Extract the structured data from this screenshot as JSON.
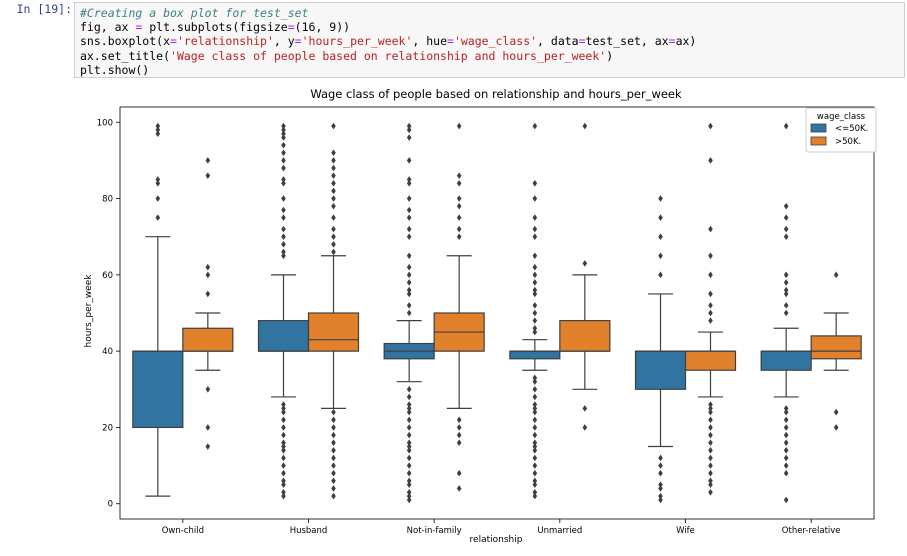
{
  "cell": {
    "prompt": "In [19]:",
    "code_lines": [
      [
        {
          "t": "#Creating a box plot for test_set",
          "c": "cm"
        }
      ],
      [
        {
          "t": "fig, ax "
        },
        {
          "t": "=",
          "c": "eq"
        },
        {
          "t": " plt.subplots(figsize"
        },
        {
          "t": "=",
          "c": "eq"
        },
        {
          "t": "(16, 9))"
        }
      ],
      [
        {
          "t": "sns.boxplot(x"
        },
        {
          "t": "=",
          "c": "eq"
        },
        {
          "t": "'relationship'",
          "c": "st"
        },
        {
          "t": ", y"
        },
        {
          "t": "=",
          "c": "eq"
        },
        {
          "t": "'hours_per_week'",
          "c": "st"
        },
        {
          "t": ", hue"
        },
        {
          "t": "=",
          "c": "eq"
        },
        {
          "t": "'wage_class'",
          "c": "st"
        },
        {
          "t": ", data"
        },
        {
          "t": "=",
          "c": "eq"
        },
        {
          "t": "test_set, ax"
        },
        {
          "t": "=",
          "c": "eq"
        },
        {
          "t": "ax)"
        }
      ],
      [
        {
          "t": "ax.set_title("
        },
        {
          "t": "'Wage class of people based on relationship and hours_per_week'",
          "c": "st"
        },
        {
          "t": ")"
        }
      ],
      [
        {
          "t": "plt.show()"
        }
      ]
    ]
  },
  "chart_data": {
    "type": "box",
    "title": "Wage class of people based on relationship and hours_per_week",
    "xlabel": "relationship",
    "ylabel": "hours_per_week",
    "categories": [
      "Own-child",
      "Husband",
      "Not-in-family",
      "Unmarried",
      "Wife",
      "Other-relative"
    ],
    "ylim": [
      -4,
      104
    ],
    "yticks": [
      0,
      20,
      40,
      60,
      80,
      100
    ],
    "legend": {
      "title": "wage_class",
      "position": "top-right"
    },
    "series": [
      {
        "name": "<=50K.",
        "color": "#3274a1",
        "boxes": [
          {
            "whislo": 2,
            "q1": 20,
            "med": 40,
            "q3": 40,
            "whishi": 70,
            "fliers": [
              75,
              80,
              84,
              85,
              97,
              98,
              99
            ]
          },
          {
            "whislo": 28,
            "q1": 40,
            "med": 40,
            "q3": 48,
            "whishi": 60,
            "fliers": [
              2,
              3,
              5,
              6,
              8,
              10,
              12,
              14,
              15,
              16,
              18,
              20,
              22,
              24,
              25,
              26,
              65,
              66,
              68,
              70,
              72,
              75,
              77,
              80,
              84,
              85,
              88,
              90,
              92,
              94,
              96,
              97,
              98,
              99
            ]
          },
          {
            "whislo": 32,
            "q1": 38,
            "med": 40,
            "q3": 42,
            "whishi": 48,
            "fliers": [
              1,
              2,
              3,
              5,
              6,
              8,
              10,
              12,
              14,
              15,
              16,
              18,
              20,
              22,
              24,
              25,
              26,
              28,
              30,
              50,
              52,
              55,
              56,
              58,
              60,
              62,
              65,
              70,
              72,
              75,
              77,
              80,
              84,
              85,
              90,
              96,
              98,
              99
            ]
          },
          {
            "whislo": 35,
            "q1": 38,
            "med": 40,
            "q3": 40,
            "whishi": 43,
            "fliers": [
              2,
              3,
              5,
              6,
              8,
              10,
              12,
              14,
              15,
              16,
              18,
              20,
              22,
              24,
              25,
              26,
              28,
              30,
              32,
              33,
              45,
              46,
              48,
              50,
              52,
              55,
              56,
              58,
              60,
              62,
              65,
              70,
              72,
              75,
              80,
              84,
              99
            ]
          },
          {
            "whislo": 15,
            "q1": 30,
            "med": 40,
            "q3": 40,
            "whishi": 55,
            "fliers": [
              1,
              2,
              4,
              5,
              8,
              10,
              12,
              60,
              65,
              70,
              75,
              80
            ]
          },
          {
            "whislo": 28,
            "q1": 35,
            "med": 40,
            "q3": 40,
            "whishi": 46,
            "fliers": [
              1,
              8,
              10,
              12,
              14,
              16,
              18,
              20,
              22,
              24,
              25,
              50,
              52,
              55,
              56,
              58,
              60,
              70,
              72,
              75,
              78,
              99
            ]
          }
        ]
      },
      {
        "name": ">50K.",
        "color": "#e1812c",
        "boxes": [
          {
            "whislo": 35,
            "q1": 40,
            "med": 40,
            "q3": 46,
            "whishi": 50,
            "fliers": [
              15,
              20,
              30,
              55,
              60,
              62,
              86,
              90
            ]
          },
          {
            "whislo": 25,
            "q1": 40,
            "med": 43,
            "q3": 50,
            "whishi": 65,
            "fliers": [
              2,
              4,
              6,
              8,
              10,
              12,
              14,
              16,
              18,
              20,
              22,
              24,
              66,
              68,
              70,
              72,
              75,
              78,
              80,
              82,
              84,
              86,
              88,
              90,
              92,
              99
            ]
          },
          {
            "whislo": 25,
            "q1": 40,
            "med": 45,
            "q3": 50,
            "whishi": 65,
            "fliers": [
              4,
              8,
              16,
              18,
              20,
              22,
              70,
              72,
              75,
              78,
              80,
              84,
              86,
              99
            ]
          },
          {
            "whislo": 30,
            "q1": 40,
            "med": 40,
            "q3": 48,
            "whishi": 60,
            "fliers": [
              20,
              25,
              63,
              99
            ]
          },
          {
            "whislo": 28,
            "q1": 35,
            "med": 40,
            "q3": 40,
            "whishi": 45,
            "fliers": [
              3,
              5,
              6,
              8,
              10,
              12,
              14,
              16,
              18,
              20,
              22,
              24,
              25,
              26,
              48,
              50,
              52,
              55,
              60,
              65,
              72,
              90,
              99
            ]
          },
          {
            "whislo": 35,
            "q1": 38,
            "med": 40,
            "q3": 44,
            "whishi": 50,
            "fliers": [
              20,
              24,
              60
            ]
          }
        ]
      }
    ]
  }
}
